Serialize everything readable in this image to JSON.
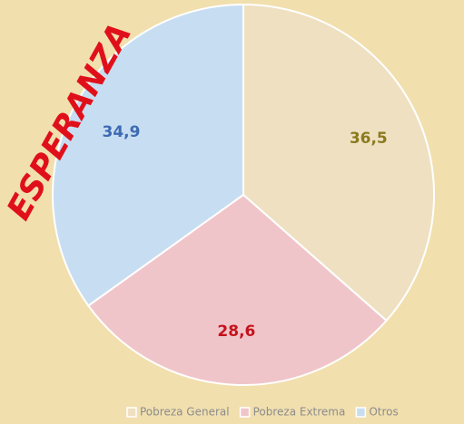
{
  "chart_data": {
    "type": "pie",
    "title": "ESPERANZA",
    "categories": [
      "Pobreza General",
      "Pobreza Extrema",
      "Otros"
    ],
    "values": [
      36.5,
      28.6,
      34.9
    ],
    "value_labels": [
      "36,5",
      "28,6",
      "34,9"
    ],
    "colors": [
      "#efe0c2",
      "#f0c5c9",
      "#c7ddf1"
    ],
    "label_colors": [
      "#8a7a1e",
      "#c4121c",
      "#3d6ab3"
    ],
    "legend": "bottom"
  }
}
